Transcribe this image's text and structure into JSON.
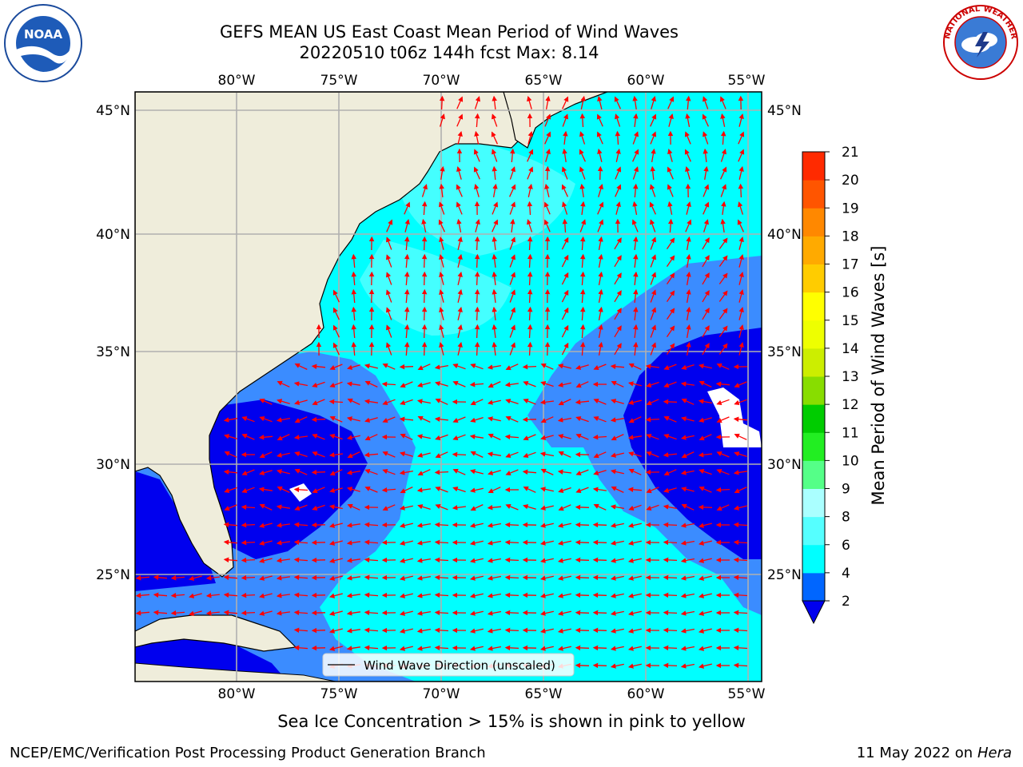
{
  "header": {
    "title_line1": "GEFS MEAN US East Coast Mean Period of Wind Waves",
    "title_line2": "20220510 t06z 144h fcst   Max: 8.14"
  },
  "logos": {
    "left": {
      "icon": "noaa-logo",
      "text": "NOAA"
    },
    "right": {
      "icon": "nws-logo",
      "text": "NATIONAL WEATHER SERVICE"
    }
  },
  "map": {
    "lon_labels": [
      "80°W",
      "75°W",
      "70°W",
      "65°W",
      "60°W",
      "55°W"
    ],
    "lat_labels": [
      "45°N",
      "40°N",
      "35°N",
      "30°N",
      "25°N"
    ],
    "legend_label": "Wind Wave Direction (unscaled)",
    "colors": {
      "land": "#efeddb",
      "level_2_4": "#3b8cff",
      "level_below_2": "#0000ee",
      "level_4_6": "#00ffff",
      "level_6_8": "#55ffff",
      "arrow": "#ff0000",
      "grid": "#b0b0b0"
    }
  },
  "colorbar": {
    "label": "Mean Period of Wind Waves [s]",
    "ticks": [
      "2",
      "4",
      "6",
      "8",
      "9",
      "10",
      "11",
      "12",
      "13",
      "14",
      "15",
      "16",
      "17",
      "18",
      "19",
      "20",
      "21"
    ],
    "colors": [
      "#0066ff",
      "#00ffff",
      "#55ffff",
      "#aaffff",
      "#55ff88",
      "#22ee22",
      "#00cc00",
      "#88dd00",
      "#ccee00",
      "#eeff00",
      "#ffff00",
      "#ffcc00",
      "#ffaa00",
      "#ff8800",
      "#ff5500",
      "#ff2a00",
      "#ff0000"
    ],
    "under_color": "#0000ee"
  },
  "notes": {
    "sea_ice": "Sea Ice Concentration > 15% is shown in pink to yellow"
  },
  "footer": {
    "left": "NCEP/EMC/Verification Post Processing Product Generation Branch",
    "date": "11 May 2022 on",
    "machine": "Hera"
  }
}
